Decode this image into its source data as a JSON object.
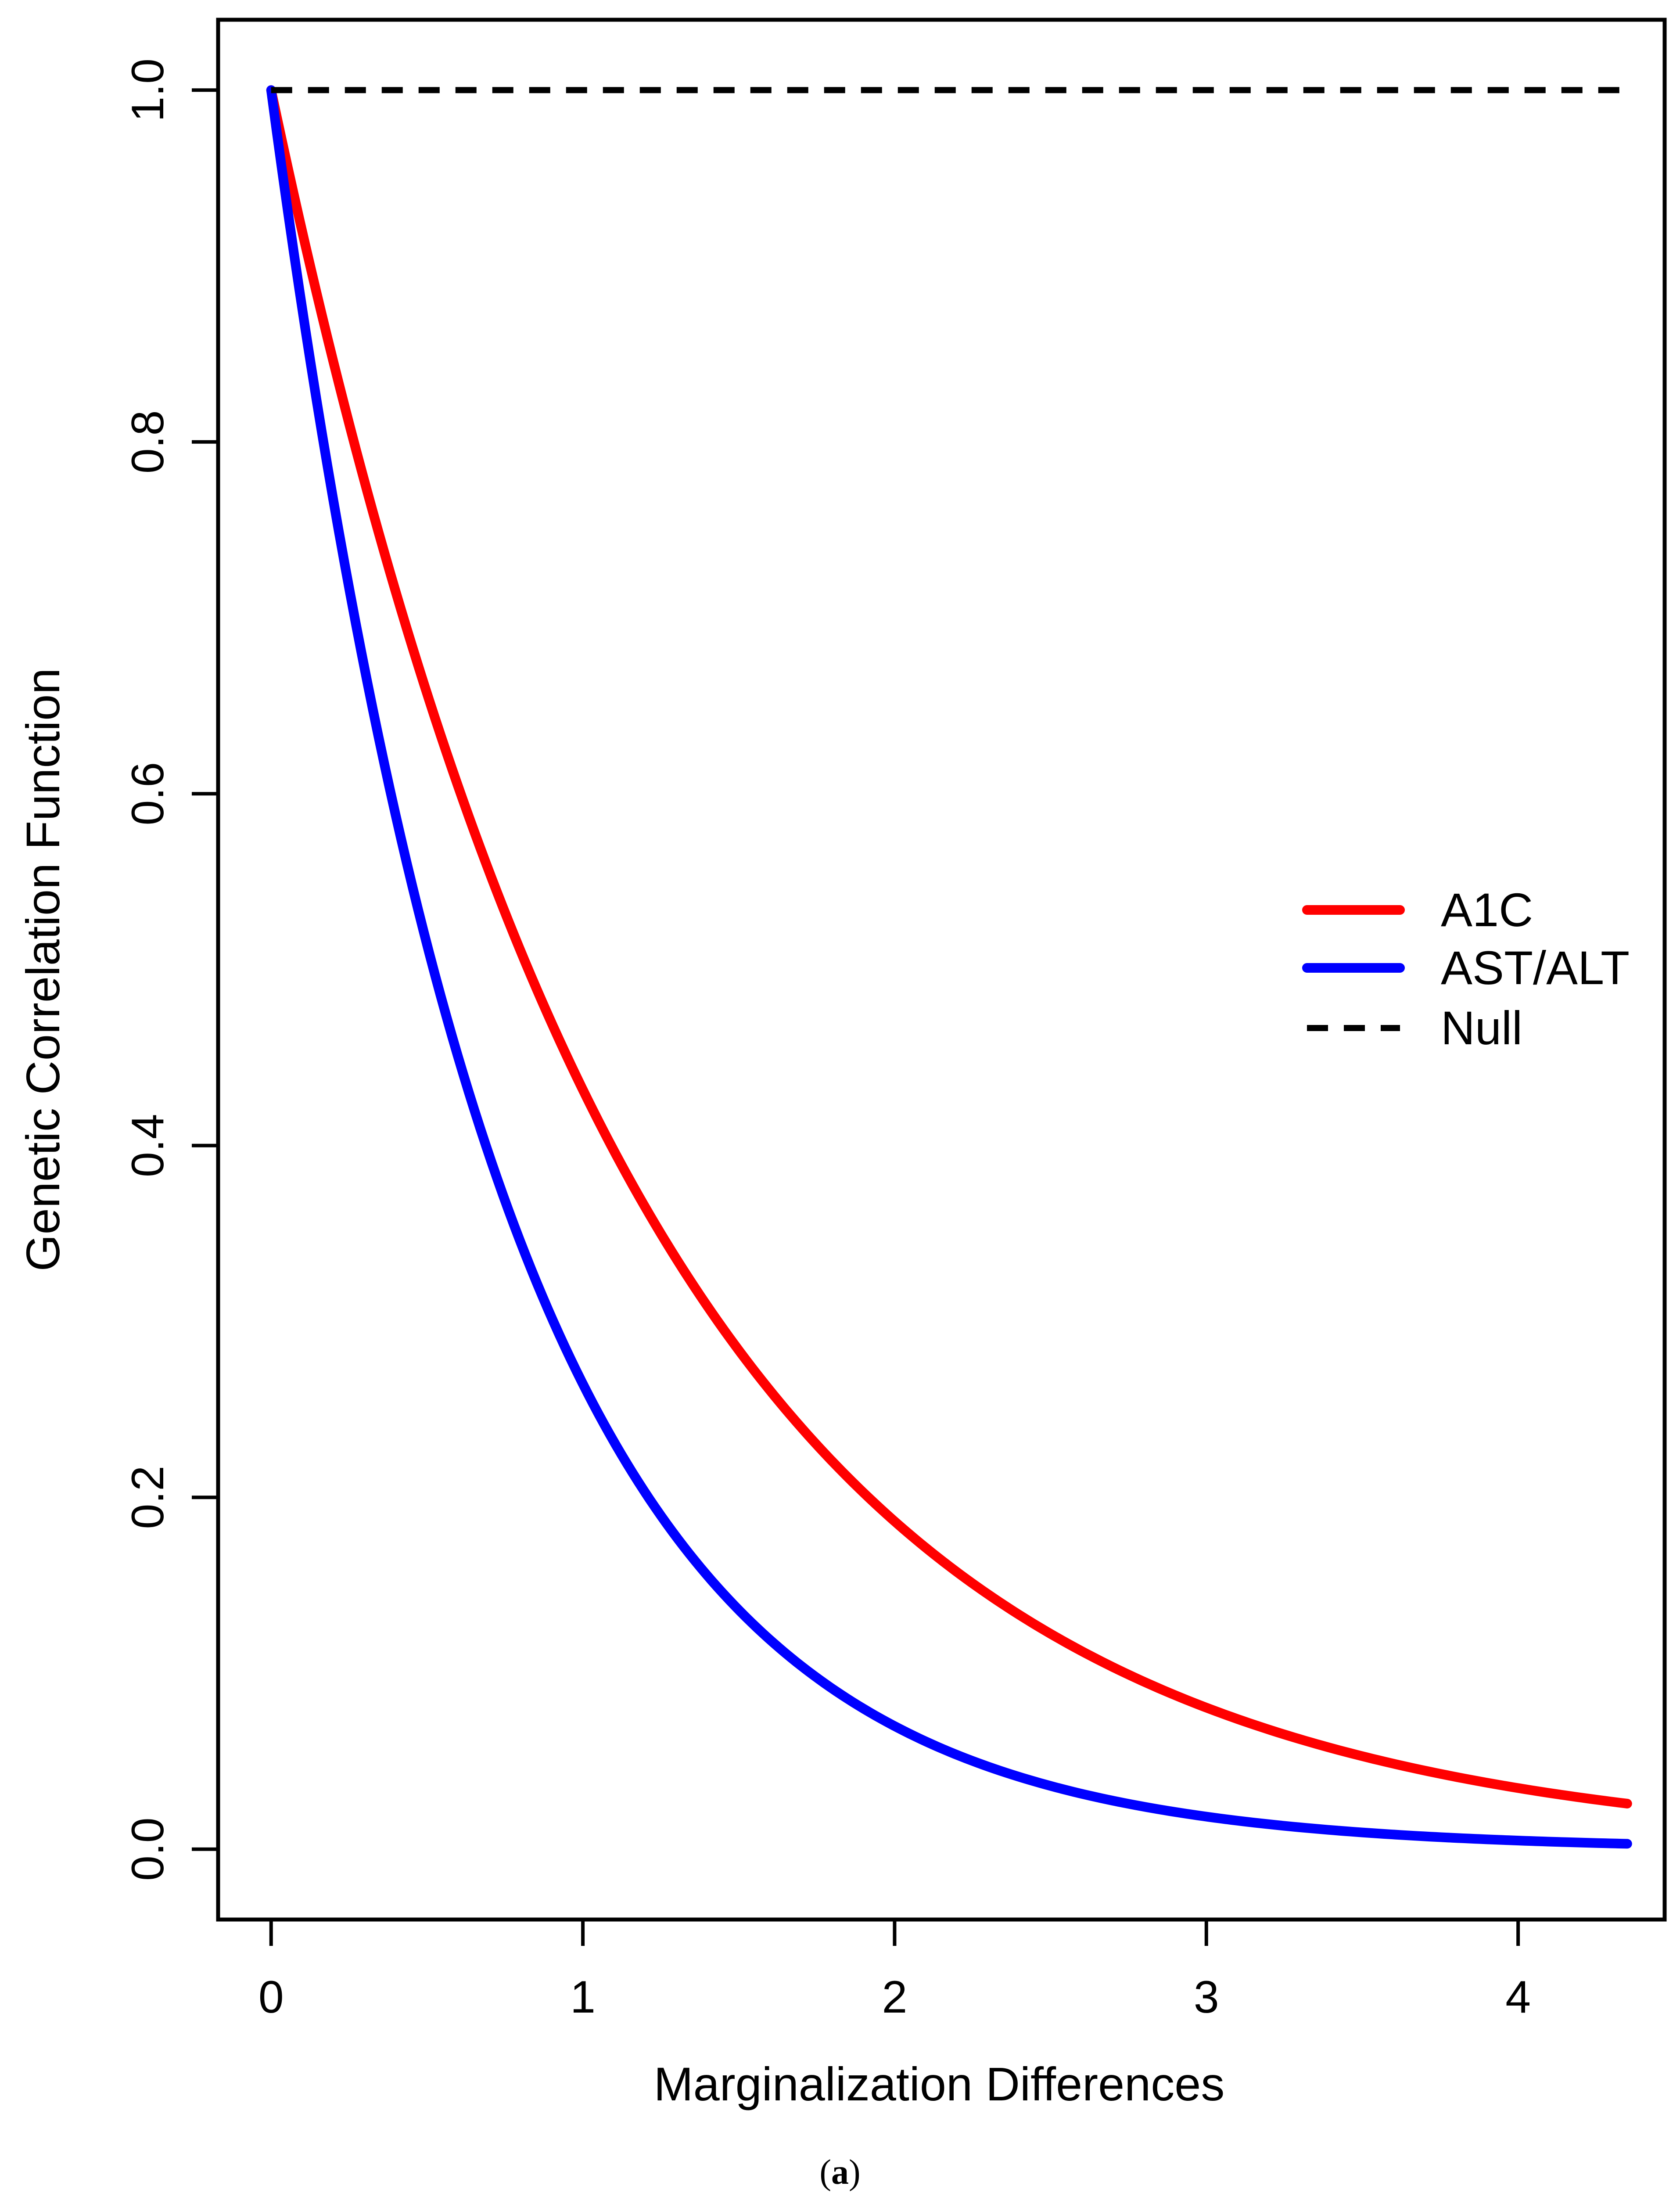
{
  "chart_data": {
    "type": "line",
    "title": "",
    "xlabel": "Marginalization Differences",
    "ylabel": "Genetic Correlation Function",
    "xlim": [
      -0.17,
      4.47
    ],
    "ylim": [
      -0.04,
      1.04
    ],
    "xticks": [
      0,
      1,
      2,
      3,
      4
    ],
    "xtick_labels": [
      "0",
      "1",
      "2",
      "3",
      "4"
    ],
    "yticks": [
      0.0,
      0.2,
      0.4,
      0.6,
      0.8,
      1.0
    ],
    "ytick_labels": [
      "0.0",
      "0.2",
      "0.4",
      "0.6",
      "0.8",
      "1.0"
    ],
    "grid": false,
    "legend_position": "right",
    "x_max": 4.35,
    "series": [
      {
        "name": "A1C",
        "color": "#ff0000",
        "style": "solid",
        "function": "exp(-0.84*x)",
        "sample_x": [
          0,
          0.5,
          1,
          1.5,
          2,
          2.5,
          3,
          3.5,
          4,
          4.35
        ],
        "sample_y": [
          1.0,
          0.66,
          0.43,
          0.28,
          0.186,
          0.122,
          0.08,
          0.053,
          0.035,
          0.026
        ]
      },
      {
        "name": "AST/ALT",
        "color": "#0000ff",
        "style": "solid",
        "function": "exp(-1.33*x)",
        "sample_x": [
          0,
          0.5,
          1,
          1.5,
          2,
          2.5,
          3,
          3.5,
          4,
          4.35
        ],
        "sample_y": [
          1.0,
          0.51,
          0.264,
          0.136,
          0.07,
          0.036,
          0.018,
          0.0095,
          0.0049,
          0.003
        ]
      },
      {
        "name": "Null",
        "color": "#000000",
        "style": "dashed",
        "function": "1",
        "sample_x": [
          0,
          4.35
        ],
        "sample_y": [
          1.0,
          1.0
        ]
      }
    ]
  },
  "caption": {
    "open": "(",
    "letter": "a",
    "close": ")"
  }
}
